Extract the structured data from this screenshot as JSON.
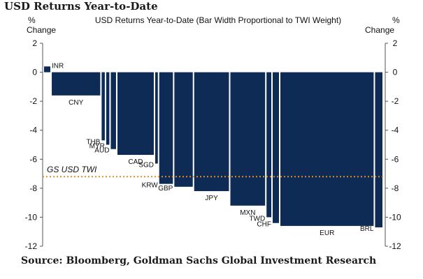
{
  "page": {
    "title": "USD Returns Year-to-Date",
    "source": "Source: Bloomberg, Goldman Sachs Global Investment Research"
  },
  "chart_data": {
    "type": "bar",
    "title": "USD Returns Year-to-Date  (Bar Width Proportional  to TWI Weight)",
    "ylabel_left": [
      "%",
      "Change"
    ],
    "ylabel_right": [
      "%",
      "Change"
    ],
    "ylim": [
      -12,
      2
    ],
    "yticks": [
      2,
      0,
      -2,
      -4,
      -6,
      -8,
      -10,
      -12
    ],
    "grid": false,
    "bar_color": "#0d2b55",
    "reference_line": {
      "label": "GS USD TWI",
      "value": -7.2,
      "color": "#e08a2b"
    },
    "categories": [
      "INR",
      "CNY",
      "THB",
      "MYR",
      "AUD",
      "CAD",
      "SGD",
      "KRW",
      "GBP",
      "JPY",
      "MXN",
      "TWD",
      "CHF",
      "EUR",
      "BRL"
    ],
    "values": [
      0.4,
      -1.6,
      -4.7,
      -5.0,
      -5.3,
      -5.7,
      -6.3,
      -7.7,
      -7.9,
      -8.2,
      -9.2,
      -10.0,
      -10.4,
      -10.6,
      -10.7
    ],
    "weights": [
      1.2,
      9.2,
      0.6,
      0.6,
      1.0,
      6.9,
      0.5,
      2.6,
      3.5,
      6.6,
      6.6,
      0.9,
      1.2,
      17.7,
      1.4
    ]
  }
}
